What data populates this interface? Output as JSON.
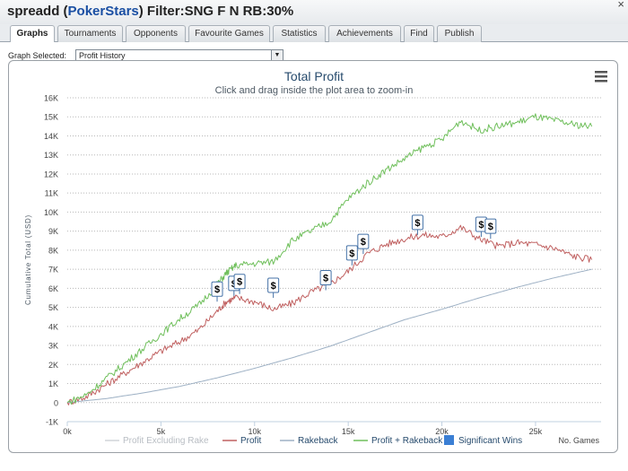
{
  "window": {
    "user": "spreadd",
    "site": "PokerStars",
    "filter": "Filter:SNG F N RB:30%"
  },
  "tabs": [
    {
      "label": "Graphs",
      "active": true
    },
    {
      "label": "Tournaments"
    },
    {
      "label": "Opponents"
    },
    {
      "label": "Favourite Games"
    },
    {
      "label": "Statistics"
    },
    {
      "label": "Achievements"
    },
    {
      "label": "Find"
    },
    {
      "label": "Publish"
    }
  ],
  "graph_selector": {
    "label": "Graph Selected:",
    "value": "Profit History"
  },
  "chart_data": {
    "type": "line",
    "title": "Total Profit",
    "subtitle": "Click and drag inside the plot area to zoom-in",
    "xlabel": "No. Games",
    "ylabel": "Cumulative Total (USD)",
    "xlim": [
      0,
      28500
    ],
    "ylim": [
      -1000,
      16000
    ],
    "x_ticks": [
      0,
      5000,
      10000,
      15000,
      20000,
      25000
    ],
    "x_tick_labels": [
      "0k",
      "5k",
      "10k",
      "15k",
      "20k",
      "25k"
    ],
    "y_ticks": [
      -1000,
      0,
      1000,
      2000,
      3000,
      4000,
      5000,
      6000,
      7000,
      8000,
      9000,
      10000,
      11000,
      12000,
      13000,
      14000,
      15000,
      16000
    ],
    "y_tick_labels": [
      "-1K",
      "0",
      "1K",
      "2K",
      "3K",
      "4K",
      "5K",
      "6K",
      "7K",
      "8K",
      "9K",
      "10K",
      "11K",
      "12K",
      "13K",
      "14K",
      "15K",
      "16K"
    ],
    "grid": true,
    "legend_position": "bottom",
    "series": [
      {
        "name": "Profit Excluding Rake",
        "color": "#d0d4d8",
        "visible": false,
        "x": [],
        "values": []
      },
      {
        "name": "Profit",
        "color": "#c06060",
        "x": [
          0,
          1000,
          2000,
          3000,
          4000,
          5000,
          6000,
          7000,
          8000,
          8500,
          9000,
          10000,
          11000,
          12000,
          13000,
          14000,
          15000,
          16000,
          17000,
          18000,
          19000,
          20000,
          21000,
          22000,
          23000,
          24000,
          25000,
          26000,
          27000,
          28000
        ],
        "values": [
          0,
          300,
          900,
          1500,
          2100,
          2700,
          3200,
          3800,
          4800,
          5300,
          5500,
          5300,
          4900,
          5200,
          5800,
          6200,
          6900,
          7800,
          8300,
          8600,
          8800,
          8700,
          9200,
          8600,
          8200,
          8400,
          8300,
          8100,
          7700,
          7500
        ]
      },
      {
        "name": "Rakeback",
        "color": "#9db0c4",
        "x": [
          0,
          2000,
          4000,
          6000,
          8000,
          10000,
          12000,
          14000,
          16000,
          18000,
          20000,
          22000,
          24000,
          26000,
          28000
        ],
        "values": [
          0,
          200,
          500,
          850,
          1300,
          1800,
          2350,
          2950,
          3650,
          4350,
          4900,
          5500,
          6050,
          6550,
          7000
        ]
      },
      {
        "name": "Profit + Rakeback",
        "color": "#6fbf5b",
        "x": [
          0,
          1000,
          2000,
          3000,
          4000,
          5000,
          6000,
          7000,
          8000,
          8500,
          9000,
          10000,
          11000,
          12000,
          13000,
          14000,
          15000,
          16000,
          17000,
          18000,
          19000,
          20000,
          21000,
          22000,
          23000,
          24000,
          25000,
          26000,
          27000,
          28000
        ],
        "values": [
          0,
          400,
          1200,
          2000,
          2800,
          3600,
          4400,
          5100,
          6200,
          6800,
          7200,
          7300,
          7400,
          8500,
          9000,
          9500,
          10700,
          11500,
          12200,
          12800,
          13400,
          13800,
          14800,
          14300,
          14500,
          14700,
          15000,
          14800,
          14600,
          14500
        ]
      },
      {
        "name": "Significant Wins",
        "color": "#3b7fd4",
        "type": "flags",
        "x": [
          8000,
          8900,
          9200,
          11000,
          13800,
          15200,
          15800,
          18700,
          22100,
          22600
        ],
        "values": [
          5300,
          5600,
          5700,
          5500,
          5900,
          7200,
          7800,
          8800,
          8700,
          8600
        ],
        "label": "$"
      }
    ]
  }
}
